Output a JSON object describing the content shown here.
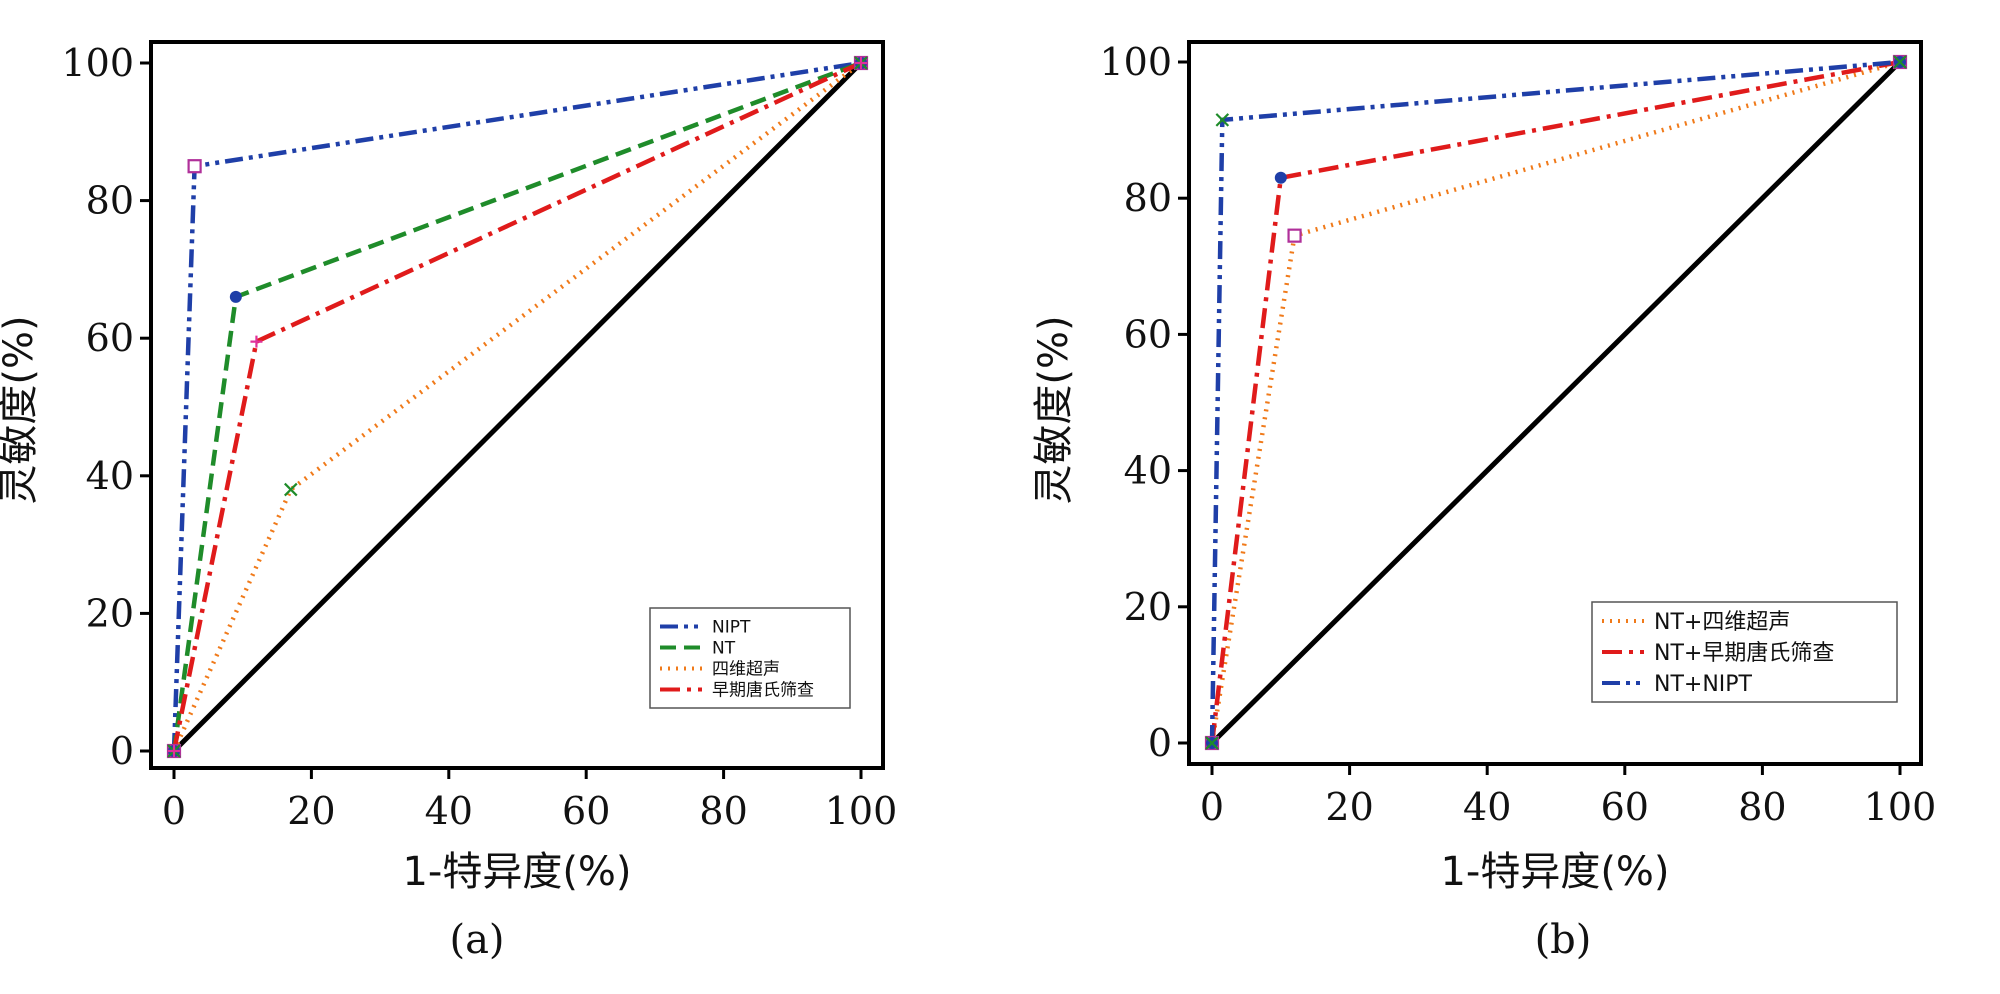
{
  "chart_data": [
    {
      "type": "line",
      "panel_label": "(a)",
      "xlabel": "1-特异度(%)",
      "ylabel": "灵敏度(%)",
      "xlim": [
        0,
        100
      ],
      "ylim": [
        0,
        100
      ],
      "xticks": [
        "0",
        "20",
        "40",
        "60",
        "80",
        "100"
      ],
      "yticks": [
        "0",
        "20",
        "40",
        "60",
        "80",
        "100"
      ],
      "legend_position": "bottom-right",
      "reference_line": {
        "x": [
          0,
          100
        ],
        "y": [
          0,
          100
        ],
        "color": "#000000"
      },
      "series": [
        {
          "name": "NIPT",
          "x": [
            0,
            3,
            100
          ],
          "y": [
            0,
            85,
            100
          ],
          "color": "#1f3fa8",
          "dash": "dashdotdot",
          "marker": "square",
          "marker_color": "#b0309a"
        },
        {
          "name": "NT",
          "x": [
            0,
            9,
            100
          ],
          "y": [
            0,
            66,
            100
          ],
          "color": "#1f8c2a",
          "dash": "dashed",
          "marker": "circle",
          "marker_color": "#1f3fa8"
        },
        {
          "name": "四维超声",
          "x": [
            0,
            17,
            100
          ],
          "y": [
            0,
            38,
            100
          ],
          "color": "#f07a1a",
          "dash": "dotted",
          "marker": "x",
          "marker_color": "#1f8c2a"
        },
        {
          "name": "早期唐氏筛查",
          "x": [
            0,
            12,
            100
          ],
          "y": [
            0,
            59.5,
            100
          ],
          "color": "#e01b1b",
          "dash": "dashdot",
          "marker": "plus",
          "marker_color": "#e0309a"
        }
      ]
    },
    {
      "type": "line",
      "panel_label": "(b)",
      "xlabel": "1-特异度(%)",
      "ylabel": "灵敏度(%)",
      "xlim": [
        0,
        100
      ],
      "ylim": [
        0,
        100
      ],
      "xticks": [
        "0",
        "20",
        "40",
        "60",
        "80",
        "100"
      ],
      "yticks": [
        "0",
        "20",
        "40",
        "60",
        "80",
        "100"
      ],
      "legend_position": "bottom-right",
      "reference_line": {
        "x": [
          0,
          100
        ],
        "y": [
          0,
          100
        ],
        "color": "#000000"
      },
      "series": [
        {
          "name": "NT+四维超声",
          "x": [
            0,
            12,
            100
          ],
          "y": [
            0,
            74.5,
            100
          ],
          "color": "#f07a1a",
          "dash": "dotted",
          "marker": "square",
          "marker_color": "#b0309a"
        },
        {
          "name": "NT+早期唐氏筛查",
          "x": [
            0,
            10,
            100
          ],
          "y": [
            0,
            83,
            100
          ],
          "color": "#e01b1b",
          "dash": "dashdot",
          "marker": "circle",
          "marker_color": "#1f3fa8"
        },
        {
          "name": "NT+NIPT",
          "x": [
            0,
            1.5,
            100
          ],
          "y": [
            0,
            91.5,
            100
          ],
          "color": "#1f3fa8",
          "dash": "dashdotdot",
          "marker": "x",
          "marker_color": "#1f8c2a"
        }
      ]
    }
  ]
}
